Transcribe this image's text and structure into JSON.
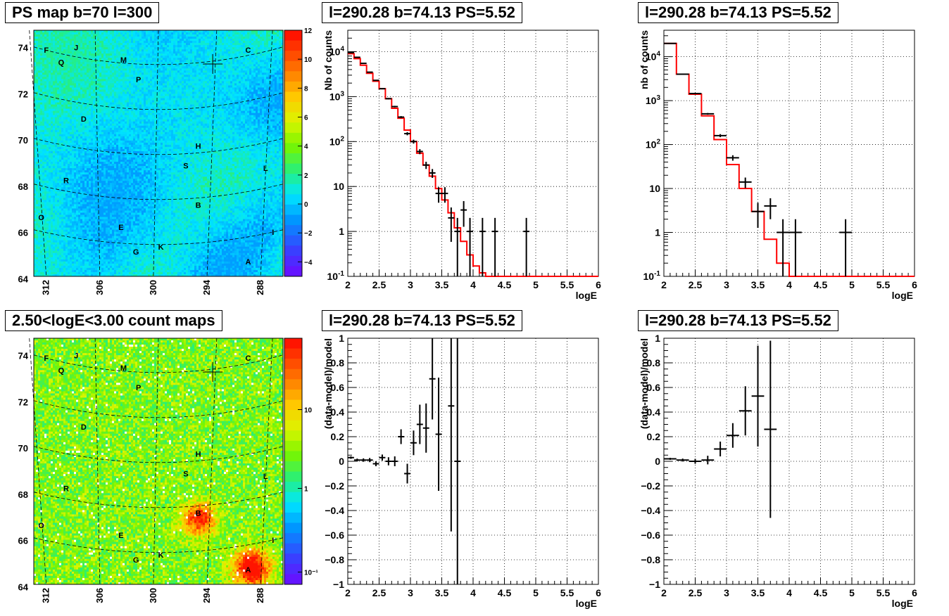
{
  "panels": {
    "map_top": {
      "title": "PS map b=70 l=300"
    },
    "map_bottom": {
      "title": "2.50<logE<3.00 count maps"
    },
    "spec_a": {
      "title": "l=290.28 b=74.13 PS=5.52"
    },
    "spec_b": {
      "title": "l=290.28 b=74.13 PS=5.52"
    },
    "resid_a": {
      "title": "l=290.28 b=74.13 PS=5.52"
    },
    "resid_b": {
      "title": "l=290.28 b=74.13 PS=5.52"
    }
  },
  "colors": {
    "model": "#ff0000",
    "data": "#000000",
    "grid": "#000000"
  },
  "chart_data": [
    {
      "id": "map_top",
      "type": "heatmap",
      "title": "PS map b=70 l=300",
      "y_ticks": [
        "74",
        "72",
        "70",
        "68",
        "66",
        "64"
      ],
      "x_ticks": [
        "312",
        "306",
        "300",
        "294",
        "288"
      ],
      "colorbar": {
        "scale": "linear",
        "min": -5,
        "max": 12,
        "ticks": [
          "12",
          "10",
          "8",
          "6",
          "4",
          "2",
          "0",
          "-2",
          "-4"
        ]
      },
      "labels": [
        "F",
        "J",
        "C",
        "M",
        "Q",
        "P",
        "D",
        "H",
        "S",
        "L",
        "R",
        "B",
        "O",
        "E",
        "I",
        "K",
        "G",
        "A"
      ]
    },
    {
      "id": "map_bottom",
      "type": "heatmap",
      "title": "2.50<logE<3.00 count maps",
      "y_ticks": [
        "74",
        "72",
        "70",
        "68",
        "66",
        "64"
      ],
      "x_ticks": [
        "312",
        "306",
        "300",
        "294",
        "288"
      ],
      "colorbar": {
        "scale": "log",
        "ticks": [
          "10",
          "1",
          "10⁻¹"
        ]
      },
      "labels": [
        "F",
        "J",
        "C",
        "M",
        "Q",
        "P",
        "D",
        "H",
        "S",
        "L",
        "R",
        "B",
        "O",
        "E",
        "I",
        "K",
        "G",
        "A"
      ]
    },
    {
      "id": "spec_a",
      "type": "line",
      "title": "l=290.28 b=74.13 PS=5.52",
      "xlabel": "logE",
      "ylabel": "Nb of counts",
      "xlim": [
        2,
        6
      ],
      "ylim": [
        0.1,
        30000
      ],
      "yscale": "log",
      "grid": true,
      "x_ticks": [
        "2",
        "2.5",
        "3",
        "3.5",
        "4",
        "4.5",
        "5",
        "5.5",
        "6"
      ],
      "y_ticks": [
        {
          "v": 10000,
          "t": "10^4"
        },
        {
          "v": 1000,
          "t": "10^3"
        },
        {
          "v": 100,
          "t": "10^2"
        },
        {
          "v": 10,
          "t": "10"
        },
        {
          "v": 1,
          "t": "1"
        },
        {
          "v": 0.1,
          "t": "10^-1"
        }
      ],
      "model_edges": [
        2.0,
        2.1,
        2.2,
        2.3,
        2.4,
        2.5,
        2.6,
        2.7,
        2.8,
        2.9,
        3.0,
        3.1,
        3.2,
        3.3,
        3.4,
        3.5,
        3.6,
        3.7,
        3.8,
        3.9,
        4.0,
        4.1,
        4.2,
        6.0
      ],
      "model_values": [
        9000,
        7000,
        5000,
        3300,
        2200,
        1500,
        900,
        550,
        330,
        180,
        100,
        55,
        30,
        17,
        9,
        5,
        2.6,
        1.2,
        0.6,
        0.3,
        0.17,
        0.12,
        0.1
      ],
      "data_points": [
        {
          "x": 2.05,
          "y": 9500,
          "xe": 0.05
        },
        {
          "x": 2.15,
          "y": 7500,
          "xe": 0.05
        },
        {
          "x": 2.25,
          "y": 5500,
          "xe": 0.05
        },
        {
          "x": 2.35,
          "y": 3500,
          "xe": 0.05
        },
        {
          "x": 2.45,
          "y": 2300,
          "xe": 0.05
        },
        {
          "x": 2.55,
          "y": 1500,
          "xe": 0.05
        },
        {
          "x": 2.65,
          "y": 900,
          "xe": 0.05
        },
        {
          "x": 2.75,
          "y": 600,
          "xe": 0.05
        },
        {
          "x": 2.85,
          "y": 350,
          "xe": 0.05
        },
        {
          "x": 2.95,
          "y": 150,
          "xe": 0.05
        },
        {
          "x": 3.05,
          "y": 100,
          "xe": 0.05
        },
        {
          "x": 3.15,
          "y": 60,
          "xe": 0.05
        },
        {
          "x": 3.25,
          "y": 30,
          "xe": 0.05
        },
        {
          "x": 3.35,
          "y": 20,
          "xe": 0.05
        },
        {
          "x": 3.45,
          "y": 7,
          "xe": 0.05
        },
        {
          "x": 3.55,
          "y": 7,
          "xe": 0.05
        },
        {
          "x": 3.65,
          "y": 2,
          "xe": 0.05
        },
        {
          "x": 3.75,
          "y": 1,
          "xe": 0.05
        },
        {
          "x": 3.85,
          "y": 3,
          "xe": 0.05
        },
        {
          "x": 3.95,
          "y": 1,
          "xe": 0.05
        },
        {
          "x": 4.15,
          "y": 1,
          "xe": 0.05
        },
        {
          "x": 4.35,
          "y": 1,
          "xe": 0.05
        },
        {
          "x": 4.85,
          "y": 1,
          "xe": 0.05
        }
      ]
    },
    {
      "id": "spec_b",
      "type": "line",
      "title": "l=290.28 b=74.13 PS=5.52",
      "xlabel": "logE",
      "ylabel": "nb of counts",
      "xlim": [
        2,
        6
      ],
      "ylim": [
        0.1,
        40000
      ],
      "yscale": "log",
      "grid": true,
      "x_ticks": [
        "2",
        "2.5",
        "3",
        "3.5",
        "4",
        "4.5",
        "5",
        "5.5",
        "6"
      ],
      "y_ticks": [
        {
          "v": 10000,
          "t": "10^4"
        },
        {
          "v": 1000,
          "t": "10^3"
        },
        {
          "v": 100,
          "t": "10^2"
        },
        {
          "v": 10,
          "t": "10"
        },
        {
          "v": 1,
          "t": "1"
        },
        {
          "v": 0.1,
          "t": "10^-1"
        }
      ],
      "model_edges": [
        2.0,
        2.2,
        2.4,
        2.6,
        2.8,
        3.0,
        3.2,
        3.4,
        3.6,
        3.8,
        4.0,
        4.2,
        6.0
      ],
      "model_values": [
        20000,
        4000,
        1400,
        450,
        130,
        35,
        10,
        3,
        0.7,
        0.2,
        0.1,
        0.1
      ],
      "data_points": [
        {
          "x": 2.1,
          "y": 20000,
          "xe": 0.1
        },
        {
          "x": 2.3,
          "y": 4000,
          "xe": 0.1
        },
        {
          "x": 2.5,
          "y": 1450,
          "xe": 0.1
        },
        {
          "x": 2.7,
          "y": 500,
          "xe": 0.1
        },
        {
          "x": 2.9,
          "y": 160,
          "xe": 0.1
        },
        {
          "x": 3.1,
          "y": 50,
          "xe": 0.1
        },
        {
          "x": 3.3,
          "y": 14,
          "xe": 0.1
        },
        {
          "x": 3.5,
          "y": 3,
          "xe": 0.1
        },
        {
          "x": 3.7,
          "y": 4,
          "xe": 0.1
        },
        {
          "x": 3.9,
          "y": 1,
          "xe": 0.1
        },
        {
          "x": 4.1,
          "y": 1,
          "xe": 0.1
        },
        {
          "x": 4.9,
          "y": 1,
          "xe": 0.1
        }
      ]
    },
    {
      "id": "resid_a",
      "type": "scatter",
      "title": "l=290.28 b=74.13 PS=5.52",
      "xlabel": "logE",
      "ylabel": "(data-model)/model",
      "xlim": [
        2,
        6
      ],
      "ylim": [
        -1,
        1
      ],
      "grid": true,
      "x_ticks": [
        "2",
        "2.5",
        "3",
        "3.5",
        "4",
        "4.5",
        "5",
        "5.5",
        "6"
      ],
      "y_ticks": [
        "1",
        "0.8",
        "0.6",
        "0.4",
        "0.2",
        "0",
        "-0.2",
        "-0.4",
        "-0.6",
        "-0.8",
        "-1"
      ],
      "points": [
        {
          "x": 2.05,
          "y": 0.03,
          "e": 0.01
        },
        {
          "x": 2.15,
          "y": 0.01,
          "e": 0.012
        },
        {
          "x": 2.25,
          "y": 0.01,
          "e": 0.014
        },
        {
          "x": 2.35,
          "y": 0.01,
          "e": 0.017
        },
        {
          "x": 2.45,
          "y": -0.02,
          "e": 0.02
        },
        {
          "x": 2.55,
          "y": 0.03,
          "e": 0.025
        },
        {
          "x": 2.65,
          "y": 0.0,
          "e": 0.033
        },
        {
          "x": 2.75,
          "y": 0.0,
          "e": 0.04
        },
        {
          "x": 2.85,
          "y": 0.2,
          "e": 0.06
        },
        {
          "x": 2.95,
          "y": -0.1,
          "e": 0.08
        },
        {
          "x": 3.05,
          "y": 0.15,
          "e": 0.1
        },
        {
          "x": 3.15,
          "y": 0.3,
          "e": 0.16
        },
        {
          "x": 3.25,
          "y": 0.27,
          "e": 0.2
        },
        {
          "x": 3.35,
          "y": 0.67,
          "e": 0.33
        },
        {
          "x": 3.45,
          "y": 0.22,
          "e": 0.46
        },
        {
          "x": 3.65,
          "y": 0.45,
          "e": 1.02
        },
        {
          "x": 3.75,
          "y": 0.0,
          "e": 1.2
        }
      ]
    },
    {
      "id": "resid_b",
      "type": "scatter",
      "title": "l=290.28 b=74.13 PS=5.52",
      "xlabel": "logE",
      "ylabel": "(data-model)/model",
      "xlim": [
        2,
        6
      ],
      "ylim": [
        -1,
        1
      ],
      "grid": true,
      "x_ticks": [
        "2",
        "2.5",
        "3",
        "3.5",
        "4",
        "4.5",
        "5",
        "5.5",
        "6"
      ],
      "y_ticks": [
        "1",
        "0.8",
        "0.6",
        "0.4",
        "0.2",
        "0",
        "-0.2",
        "-0.4",
        "-0.6",
        "-0.8",
        "-1"
      ],
      "points": [
        {
          "x": 2.1,
          "y": 0.02,
          "e": 0.008
        },
        {
          "x": 2.3,
          "y": 0.01,
          "e": 0.012
        },
        {
          "x": 2.5,
          "y": 0.0,
          "e": 0.02
        },
        {
          "x": 2.7,
          "y": 0.01,
          "e": 0.035
        },
        {
          "x": 2.9,
          "y": 0.1,
          "e": 0.06
        },
        {
          "x": 3.1,
          "y": 0.21,
          "e": 0.1
        },
        {
          "x": 3.3,
          "y": 0.41,
          "e": 0.2
        },
        {
          "x": 3.5,
          "y": 0.53,
          "e": 0.41
        },
        {
          "x": 3.7,
          "y": 0.26,
          "e": 0.72
        }
      ]
    }
  ]
}
